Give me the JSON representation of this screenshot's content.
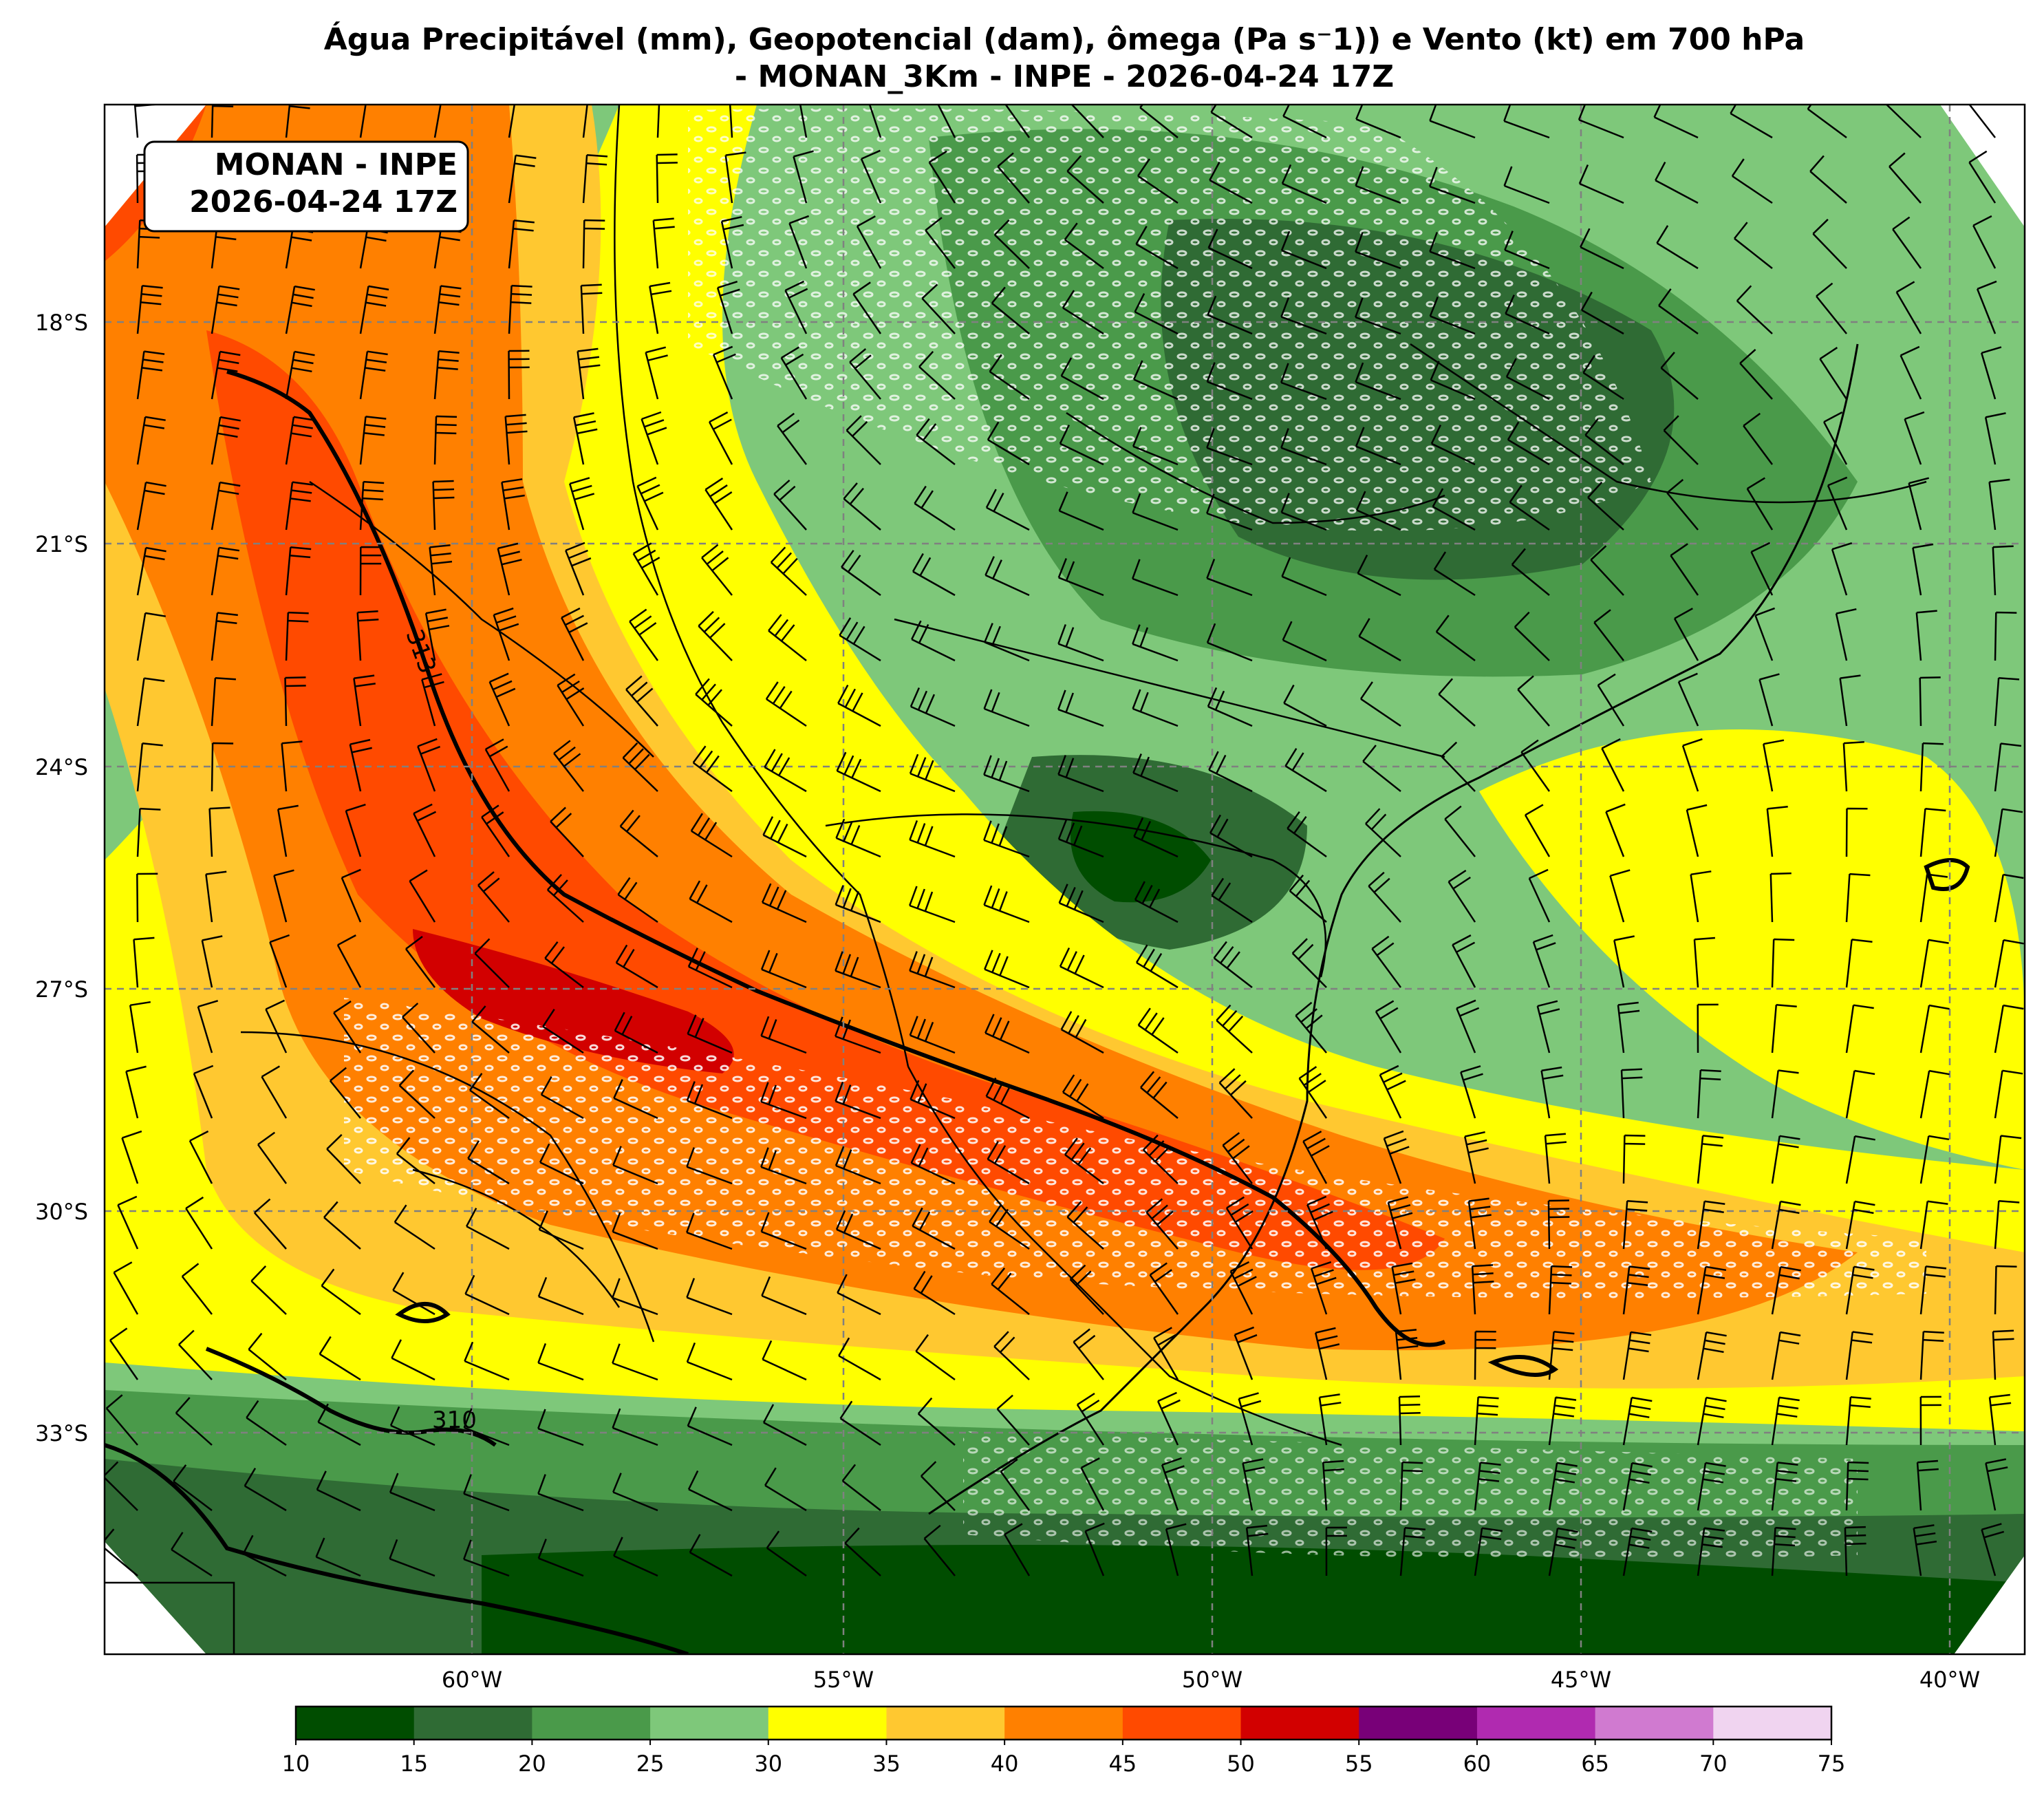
{
  "title": {
    "line1": "Água Precipitável (mm), Geopotencial (dam), ômega (Pa s⁻1)) e Vento (kt) em 700 hPa",
    "line2": "- MONAN_3Km - INPE - 2026-04-24 17Z"
  },
  "stamp": {
    "line1": "MONAN - INPE",
    "line2": "2026-04-24 17Z"
  },
  "axes": {
    "lat_ticks": [
      "18°S",
      "21°S",
      "24°S",
      "27°S",
      "30°S",
      "33°S"
    ],
    "lon_ticks": [
      "60°W",
      "55°W",
      "50°W",
      "45°W",
      "40°W"
    ],
    "lat_range": [
      -36,
      -15
    ],
    "lon_range": [
      -65,
      -39
    ]
  },
  "geopotential_contours": {
    "labels": [
      "313",
      "310"
    ],
    "label_values": [
      313,
      310
    ]
  },
  "colorbar": {
    "tick_labels": [
      "10",
      "15",
      "20",
      "25",
      "30",
      "35",
      "40",
      "45",
      "50",
      "55",
      "60",
      "65",
      "70",
      "75"
    ],
    "colors": [
      "#004d00",
      "#2f6b34",
      "#4a9a4a",
      "#7ec87a",
      "#ffff00",
      "#ffc830",
      "#ff8000",
      "#ff4a00",
      "#d20000",
      "#780078",
      "#b02ab0",
      "#d07ad0",
      "#f0d4f0"
    ]
  },
  "colors": {
    "barb": "#000000",
    "omega_contour": "#ffffff",
    "grid": "#808080"
  }
}
